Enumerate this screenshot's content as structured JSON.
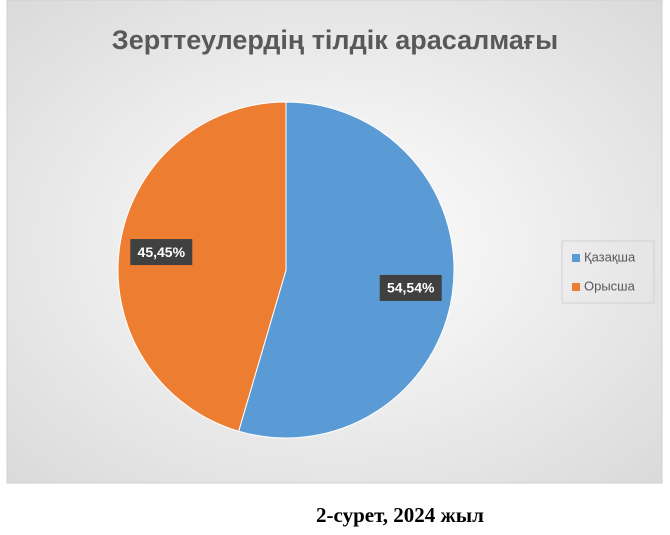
{
  "chart_data": {
    "type": "pie",
    "title": "Зерттеулердің тілдік арасалмағы",
    "categories": [
      "Қазақша",
      "Орысша"
    ],
    "values": [
      54.54,
      45.45
    ],
    "value_labels": [
      "54,54%",
      "45,45%"
    ],
    "colors": [
      "#5b9bd5",
      "#ed7d31"
    ],
    "legend": "right"
  },
  "caption": "2-сурет, 2024 жыл"
}
